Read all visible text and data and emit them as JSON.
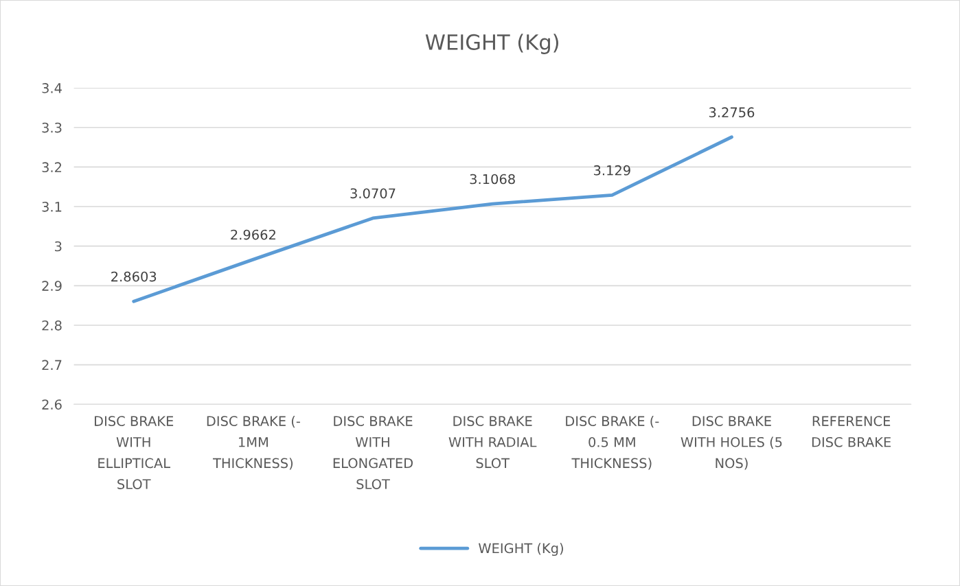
{
  "chart_data": {
    "type": "line",
    "title": "WEIGHT (Kg)",
    "categories": [
      "DISC BRAKE\nWITH\nELLIPTICAL\nSLOT",
      "DISC BRAKE (-\n1MM\nTHICKNESS)",
      "DISC BRAKE\nWITH\nELONGATED\nSLOT",
      "DISC BRAKE\nWITH RADIAL\nSLOT",
      "DISC BRAKE (-\n0.5 MM\nTHICKNESS)",
      "DISC BRAKE\nWITH HOLES (5\nNOS)",
      "REFERENCE\nDISC BRAKE"
    ],
    "series": [
      {
        "name": "WEIGHT (Kg)",
        "color": "#5b9bd5",
        "values": [
          2.8603,
          2.9662,
          3.0707,
          3.1068,
          3.129,
          3.2756,
          null
        ]
      }
    ],
    "ylim": [
      2.6,
      3.4
    ],
    "yticks": [
      2.6,
      2.7,
      2.8,
      2.9,
      3,
      3.1,
      3.2,
      3.3,
      3.4
    ],
    "grid": "y",
    "legend": "bottom",
    "data_labels": true,
    "marker": "none",
    "line_style": "solid"
  }
}
